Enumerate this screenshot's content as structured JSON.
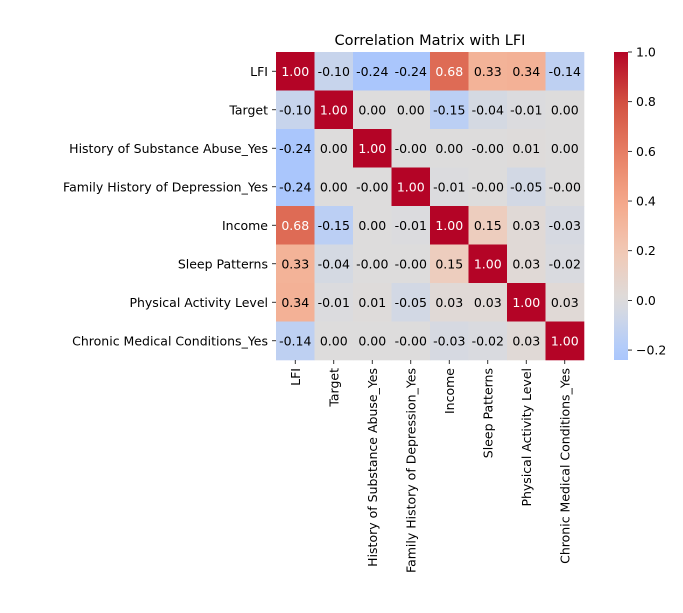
{
  "chart_data": {
    "type": "heatmap",
    "title": "Correlation Matrix with LFI",
    "colormap": "coolwarm",
    "labels": [
      "LFI",
      "Target",
      "History of Substance Abuse_Yes",
      "Family History of Depression_Yes",
      "Income",
      "Sleep Patterns",
      "Physical Activity Level",
      "Chronic Medical Conditions_Yes"
    ],
    "values": [
      [
        1.0,
        -0.1,
        -0.24,
        -0.24,
        0.68,
        0.33,
        0.34,
        -0.14
      ],
      [
        -0.1,
        1.0,
        0.0,
        0.0,
        -0.15,
        -0.04,
        -0.01,
        0.0
      ],
      [
        -0.24,
        0.0,
        1.0,
        -0.0,
        0.0,
        -0.0,
        0.01,
        0.0
      ],
      [
        -0.24,
        0.0,
        -0.0,
        1.0,
        -0.01,
        -0.0,
        -0.05,
        -0.0
      ],
      [
        0.68,
        -0.15,
        0.0,
        -0.01,
        1.0,
        0.15,
        0.03,
        -0.03
      ],
      [
        0.33,
        -0.04,
        -0.0,
        -0.0,
        0.15,
        1.0,
        0.03,
        -0.02
      ],
      [
        0.34,
        -0.01,
        0.01,
        -0.05,
        0.03,
        0.03,
        1.0,
        0.03
      ],
      [
        -0.14,
        0.0,
        0.0,
        -0.0,
        -0.03,
        -0.02,
        0.03,
        1.0
      ]
    ],
    "annotation_labels": [
      [
        "1.00",
        "-0.10",
        "-0.24",
        "-0.24",
        "0.68",
        "0.33",
        "0.34",
        "-0.14"
      ],
      [
        "-0.10",
        "1.00",
        "0.00",
        "0.00",
        "-0.15",
        "-0.04",
        "-0.01",
        "0.00"
      ],
      [
        "-0.24",
        "0.00",
        "1.00",
        "-0.00",
        "0.00",
        "-0.00",
        "0.01",
        "0.00"
      ],
      [
        "-0.24",
        "0.00",
        "-0.00",
        "1.00",
        "-0.01",
        "-0.00",
        "-0.05",
        "-0.00"
      ],
      [
        "0.68",
        "-0.15",
        "0.00",
        "-0.01",
        "1.00",
        "0.15",
        "0.03",
        "-0.03"
      ],
      [
        "0.33",
        "-0.04",
        "-0.00",
        "-0.00",
        "0.15",
        "1.00",
        "0.03",
        "-0.02"
      ],
      [
        "0.34",
        "-0.01",
        "0.01",
        "-0.05",
        "0.03",
        "0.03",
        "1.00",
        "0.03"
      ],
      [
        "-0.14",
        "0.00",
        "0.00",
        "-0.00",
        "-0.03",
        "-0.02",
        "0.03",
        "1.00"
      ]
    ],
    "colorbar": {
      "range": [
        -0.24,
        1.0
      ],
      "tick_values": [
        1.0,
        0.8,
        0.6,
        0.4,
        0.2,
        0.0,
        -0.2
      ],
      "tick_labels": [
        "1.0",
        "0.8",
        "0.6",
        "0.4",
        "0.2",
        "0.0",
        "−0.2"
      ]
    },
    "colors": {
      "max": "#b40426",
      "center": "#dddcdc",
      "min": "#c0d4f5",
      "text_light": "#ffffff",
      "text_dark": "#000000"
    },
    "xlabel": "",
    "ylabel": ""
  }
}
